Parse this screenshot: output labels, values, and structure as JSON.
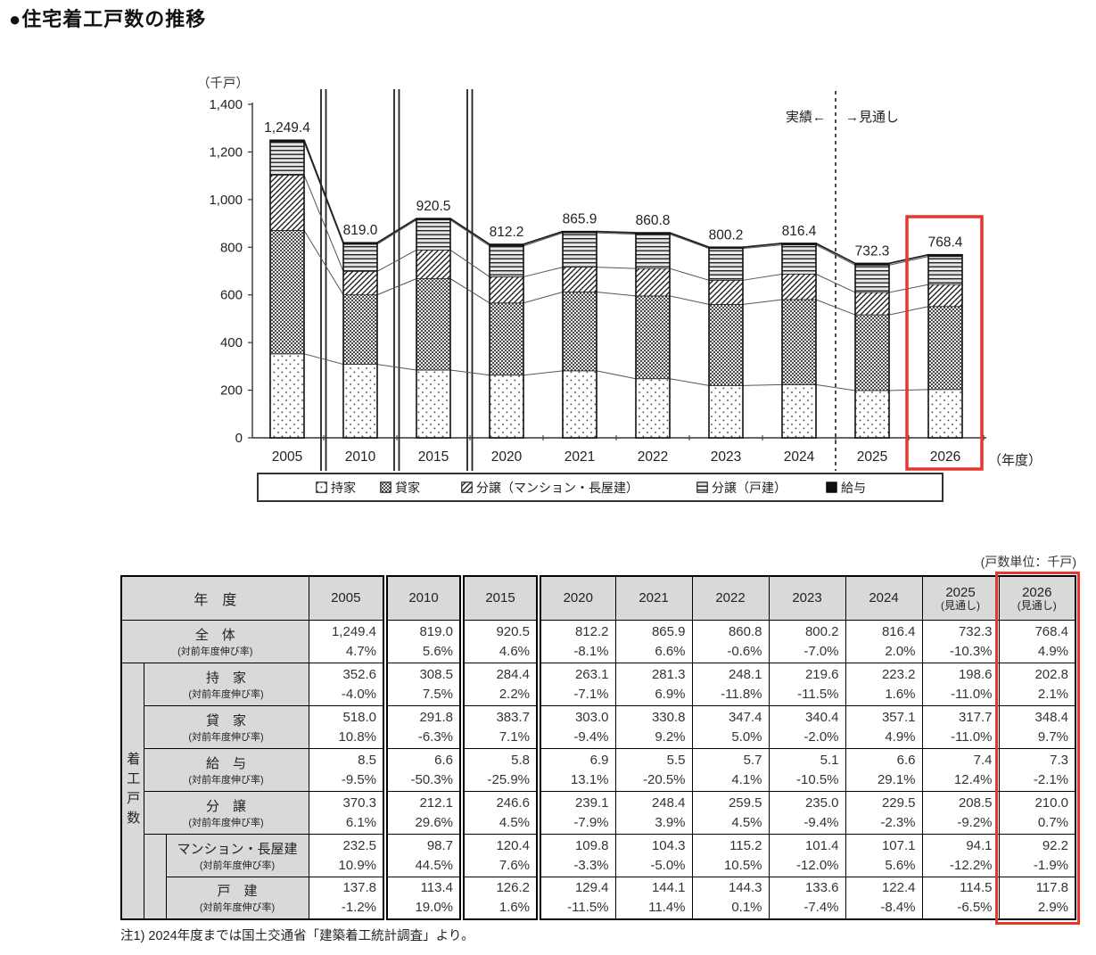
{
  "title": "●住宅着工戸数の推移",
  "chart": {
    "unit_label": "（千戸）",
    "actual_label": "実績←",
    "forecast_label": "→見通し",
    "x_axis_label": "（年度）",
    "highlight_color": "#e5372b"
  },
  "chart_data": {
    "type": "bar",
    "stacked": true,
    "title": "住宅着工戸数の推移",
    "ylabel": "千戸",
    "xlabel": "年度",
    "ylim": [
      0,
      1400
    ],
    "yticks": [
      "0",
      "200",
      "400",
      "600",
      "800",
      "1,000",
      "1,200",
      "1,400"
    ],
    "grid": false,
    "legend_position": "bottom",
    "categories": [
      "2005",
      "2010",
      "2015",
      "2020",
      "2021",
      "2022",
      "2023",
      "2024",
      "2025",
      "2026"
    ],
    "axis_breaks_after_index": [
      0,
      1,
      2
    ],
    "forecast_divider_after_index": 7,
    "highlight_index": 9,
    "series": [
      {
        "name": "持家",
        "pattern": "dots-sparse",
        "values": [
          352.6,
          308.5,
          284.4,
          263.1,
          281.3,
          248.1,
          219.6,
          223.2,
          198.6,
          202.8
        ]
      },
      {
        "name": "貸家",
        "pattern": "dots-dense",
        "values": [
          518.0,
          291.8,
          383.7,
          303.0,
          330.8,
          347.4,
          340.4,
          357.1,
          317.7,
          348.4
        ]
      },
      {
        "name": "分譲（マンション・長屋建）",
        "pattern": "diagonal-hatch",
        "values": [
          232.5,
          98.7,
          120.4,
          109.8,
          104.3,
          115.2,
          101.4,
          107.1,
          94.1,
          92.2
        ]
      },
      {
        "name": "分譲（戸建）",
        "pattern": "horizontal-lines",
        "values": [
          137.8,
          113.4,
          126.2,
          129.4,
          144.1,
          144.3,
          133.6,
          122.4,
          114.5,
          117.8
        ]
      },
      {
        "name": "給与",
        "pattern": "solid-black",
        "values": [
          8.5,
          6.6,
          5.8,
          6.9,
          5.5,
          5.7,
          5.1,
          6.6,
          7.4,
          7.3
        ]
      }
    ],
    "totals": [
      1249.4,
      819.0,
      920.5,
      812.2,
      865.9,
      860.8,
      800.2,
      816.4,
      732.3,
      768.4
    ],
    "total_labels": [
      "1,249.4",
      "819.0",
      "920.5",
      "812.2",
      "865.9",
      "860.8",
      "800.2",
      "816.4",
      "732.3",
      "768.4"
    ]
  },
  "legend": {
    "items": [
      {
        "label": "持家",
        "pattern": "dots-sparse"
      },
      {
        "label": "貸家",
        "pattern": "dots-dense"
      },
      {
        "label": "分譲（マンション・長屋建）",
        "pattern": "diagonal-hatch"
      },
      {
        "label": "分譲（戸建）",
        "pattern": "horizontal-lines"
      },
      {
        "label": "給与",
        "pattern": "solid-black"
      }
    ]
  },
  "table": {
    "unit_note": "(戸数単位：千戸)",
    "side_label": "着工戸数",
    "header": {
      "label": "年　度",
      "years": [
        "2005",
        "2010",
        "2015",
        "2020",
        "2021",
        "2022",
        "2023",
        "2024",
        "2025",
        "2026"
      ],
      "forecast_note": "(見通し)",
      "forecast_from_index": 8
    },
    "growth_sublabel": "(対前年度伸び率)",
    "rows": [
      {
        "label": "全　体",
        "level": 0,
        "values": [
          "1,249.4",
          "819.0",
          "920.5",
          "812.2",
          "865.9",
          "860.8",
          "800.2",
          "816.4",
          "732.3",
          "768.4"
        ],
        "pcts": [
          "4.7%",
          "5.6%",
          "4.6%",
          "-8.1%",
          "6.6%",
          "-0.6%",
          "-7.0%",
          "2.0%",
          "-10.3%",
          "4.9%"
        ]
      },
      {
        "label": "持　家",
        "level": 1,
        "values": [
          "352.6",
          "308.5",
          "284.4",
          "263.1",
          "281.3",
          "248.1",
          "219.6",
          "223.2",
          "198.6",
          "202.8"
        ],
        "pcts": [
          "-4.0%",
          "7.5%",
          "2.2%",
          "-7.1%",
          "6.9%",
          "-11.8%",
          "-11.5%",
          "1.6%",
          "-11.0%",
          "2.1%"
        ]
      },
      {
        "label": "貸　家",
        "level": 1,
        "values": [
          "518.0",
          "291.8",
          "383.7",
          "303.0",
          "330.8",
          "347.4",
          "340.4",
          "357.1",
          "317.7",
          "348.4"
        ],
        "pcts": [
          "10.8%",
          "-6.3%",
          "7.1%",
          "-9.4%",
          "9.2%",
          "5.0%",
          "-2.0%",
          "4.9%",
          "-11.0%",
          "9.7%"
        ]
      },
      {
        "label": "給　与",
        "level": 1,
        "values": [
          "8.5",
          "6.6",
          "5.8",
          "6.9",
          "5.5",
          "5.7",
          "5.1",
          "6.6",
          "7.4",
          "7.3"
        ],
        "pcts": [
          "-9.5%",
          "-50.3%",
          "-25.9%",
          "13.1%",
          "-20.5%",
          "4.1%",
          "-10.5%",
          "29.1%",
          "12.4%",
          "-2.1%"
        ]
      },
      {
        "label": "分　譲",
        "level": 1,
        "values": [
          "370.3",
          "212.1",
          "246.6",
          "239.1",
          "248.4",
          "259.5",
          "235.0",
          "229.5",
          "208.5",
          "210.0"
        ],
        "pcts": [
          "6.1%",
          "29.6%",
          "4.5%",
          "-7.9%",
          "3.9%",
          "4.5%",
          "-9.4%",
          "-2.3%",
          "-9.2%",
          "0.7%"
        ]
      },
      {
        "label": "マンション・長屋建",
        "level": 2,
        "values": [
          "232.5",
          "98.7",
          "120.4",
          "109.8",
          "104.3",
          "115.2",
          "101.4",
          "107.1",
          "94.1",
          "92.2"
        ],
        "pcts": [
          "10.9%",
          "44.5%",
          "7.6%",
          "-3.3%",
          "-5.0%",
          "10.5%",
          "-12.0%",
          "5.6%",
          "-12.2%",
          "-1.9%"
        ]
      },
      {
        "label": "戸　建",
        "level": 2,
        "values": [
          "137.8",
          "113.4",
          "126.2",
          "129.4",
          "144.1",
          "144.3",
          "133.6",
          "122.4",
          "114.5",
          "117.8"
        ],
        "pcts": [
          "-1.2%",
          "19.0%",
          "1.6%",
          "-11.5%",
          "11.4%",
          "0.1%",
          "-7.4%",
          "-8.4%",
          "-6.5%",
          "2.9%"
        ]
      }
    ],
    "footnote": "注1) 2024年度までは国土交通省「建築着工統計調査」より。"
  }
}
